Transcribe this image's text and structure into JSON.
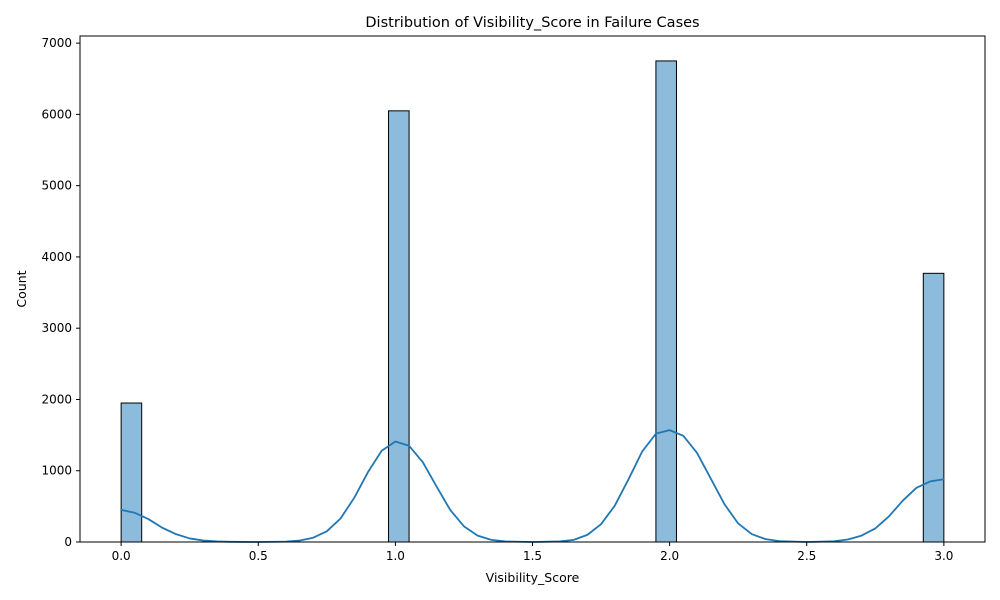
{
  "chart_data": {
    "type": "bar",
    "title": "Distribution of Visibility_Score in Failure Cases",
    "xlabel": "Visibility_Score",
    "ylabel": "Count",
    "xlim": [
      -0.15,
      3.15
    ],
    "ylim": [
      0,
      7100
    ],
    "x_ticks": [
      0.0,
      0.5,
      1.0,
      1.5,
      2.0,
      2.5,
      3.0
    ],
    "x_tick_labels": [
      "0.0",
      "0.5",
      "1.0",
      "1.5",
      "2.0",
      "2.5",
      "3.0"
    ],
    "y_ticks": [
      0,
      1000,
      2000,
      3000,
      4000,
      5000,
      6000,
      7000
    ],
    "y_tick_labels": [
      "0",
      "1000",
      "2000",
      "3000",
      "4000",
      "5000",
      "6000",
      "7000"
    ],
    "bin_width": 0.075,
    "bars": [
      {
        "x": 0.0,
        "count": 1950
      },
      {
        "x": 0.975,
        "count": 6050
      },
      {
        "x": 1.95,
        "count": 6750
      },
      {
        "x": 2.925,
        "count": 3770
      }
    ],
    "kde": {
      "x": [
        0.0,
        0.05,
        0.1,
        0.15,
        0.2,
        0.25,
        0.3,
        0.35,
        0.4,
        0.5,
        0.6,
        0.65,
        0.7,
        0.75,
        0.8,
        0.85,
        0.9,
        0.95,
        1.0,
        1.05,
        1.1,
        1.15,
        1.2,
        1.25,
        1.3,
        1.35,
        1.4,
        1.5,
        1.6,
        1.65,
        1.7,
        1.75,
        1.8,
        1.85,
        1.9,
        1.95,
        2.0,
        2.05,
        2.1,
        2.15,
        2.2,
        2.25,
        2.3,
        2.35,
        2.4,
        2.5,
        2.6,
        2.65,
        2.7,
        2.75,
        2.8,
        2.85,
        2.9,
        2.95,
        3.0
      ],
      "y": [
        450,
        410,
        320,
        200,
        110,
        50,
        20,
        8,
        3,
        0,
        5,
        20,
        60,
        150,
        330,
        620,
        980,
        1280,
        1410,
        1350,
        1120,
        780,
        450,
        220,
        90,
        30,
        8,
        0,
        8,
        30,
        100,
        250,
        510,
        880,
        1270,
        1520,
        1570,
        1490,
        1250,
        890,
        530,
        260,
        110,
        40,
        12,
        0,
        10,
        35,
        90,
        190,
        360,
        580,
        760,
        850,
        880
      ]
    },
    "bar_color": "#8dbbdb",
    "bar_edge_color": "#000000",
    "line_color": "#1f77b4",
    "grid": false,
    "legend": "none"
  }
}
